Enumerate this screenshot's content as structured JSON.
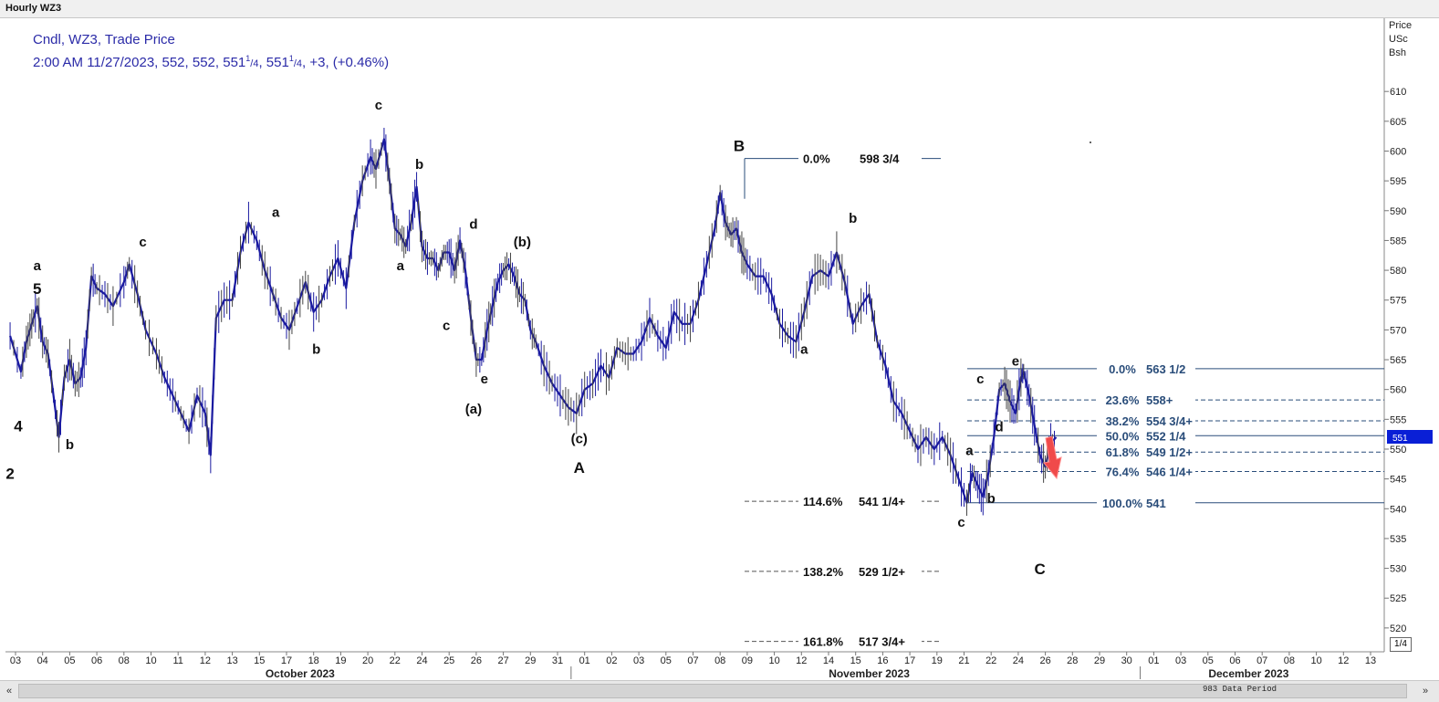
{
  "window": {
    "title": "Hourly WZ3"
  },
  "header": {
    "line1": "Cndl, WZ3, Trade Price",
    "line2_pre": "2:00 AM 11/27/2023, 552, 552, 551",
    "frac": "1",
    "frac_den": "/4",
    "line2_mid": ", 551",
    "line2_post": ", +3, (+0.46%)"
  },
  "axis": {
    "unit_lines": [
      "Price",
      "USc",
      "Bsh"
    ],
    "current_price_box": "551",
    "fraction_box": "1/4",
    "data_period": "983 Data Period"
  },
  "chart_data": {
    "type": "candlestick",
    "ylim": [
      516,
      615
    ],
    "y_ticks": [
      520,
      525,
      530,
      535,
      540,
      545,
      550,
      555,
      560,
      565,
      570,
      575,
      580,
      585,
      590,
      595,
      600,
      605,
      610
    ],
    "x_ticks": [
      {
        "label": "03",
        "i": 0
      },
      {
        "label": "04",
        "i": 1
      },
      {
        "label": "05",
        "i": 2
      },
      {
        "label": "06",
        "i": 3
      },
      {
        "label": "08",
        "i": 4
      },
      {
        "label": "10",
        "i": 5
      },
      {
        "label": "11",
        "i": 6
      },
      {
        "label": "12",
        "i": 7
      },
      {
        "label": "13",
        "i": 8
      },
      {
        "label": "15",
        "i": 9
      },
      {
        "label": "17",
        "i": 10
      },
      {
        "label": "18",
        "i": 11
      },
      {
        "label": "19",
        "i": 12
      },
      {
        "label": "20",
        "i": 13
      },
      {
        "label": "22",
        "i": 14
      },
      {
        "label": "24",
        "i": 15
      },
      {
        "label": "25",
        "i": 16
      },
      {
        "label": "26",
        "i": 17
      },
      {
        "label": "27",
        "i": 18
      },
      {
        "label": "29",
        "i": 19
      },
      {
        "label": "31",
        "i": 20
      },
      {
        "label": "01",
        "i": 21
      },
      {
        "label": "02",
        "i": 22
      },
      {
        "label": "03",
        "i": 23
      },
      {
        "label": "05",
        "i": 24
      },
      {
        "label": "07",
        "i": 25
      },
      {
        "label": "08",
        "i": 26
      },
      {
        "label": "09",
        "i": 27
      },
      {
        "label": "10",
        "i": 28
      },
      {
        "label": "12",
        "i": 29
      },
      {
        "label": "14",
        "i": 30
      },
      {
        "label": "15",
        "i": 31
      },
      {
        "label": "16",
        "i": 32
      },
      {
        "label": "17",
        "i": 33
      },
      {
        "label": "19",
        "i": 34
      },
      {
        "label": "21",
        "i": 35
      },
      {
        "label": "22",
        "i": 36
      },
      {
        "label": "24",
        "i": 37
      },
      {
        "label": "26",
        "i": 38
      },
      {
        "label": "28",
        "i": 39
      },
      {
        "label": "29",
        "i": 40
      },
      {
        "label": "30",
        "i": 41
      },
      {
        "label": "01",
        "i": 42
      },
      {
        "label": "03",
        "i": 43
      },
      {
        "label": "05",
        "i": 44
      },
      {
        "label": "06",
        "i": 45
      },
      {
        "label": "07",
        "i": 46
      },
      {
        "label": "08",
        "i": 47
      },
      {
        "label": "10",
        "i": 48
      },
      {
        "label": "12",
        "i": 49
      },
      {
        "label": "13",
        "i": 50
      }
    ],
    "months": [
      {
        "label": "October 2023",
        "i": 10.5
      },
      {
        "label": "November 2023",
        "i": 31.5
      },
      {
        "label": "December 2023",
        "i": 45.5
      }
    ],
    "month_separators": [
      20.5,
      41.5
    ],
    "price_path": [
      [
        -0.2,
        569
      ],
      [
        0.2,
        563
      ],
      [
        0.4,
        568
      ],
      [
        0.6,
        571
      ],
      [
        0.8,
        574
      ],
      [
        1.0,
        568
      ],
      [
        1.2,
        566
      ],
      [
        1.4,
        559
      ],
      [
        1.6,
        552
      ],
      [
        1.8,
        562
      ],
      [
        2.0,
        565
      ],
      [
        2.2,
        561
      ],
      [
        2.4,
        562
      ],
      [
        2.6,
        567
      ],
      [
        2.8,
        579
      ],
      [
        3.0,
        577
      ],
      [
        3.3,
        576
      ],
      [
        3.6,
        574
      ],
      [
        4.0,
        578
      ],
      [
        4.2,
        581
      ],
      [
        4.5,
        576
      ],
      [
        4.8,
        570
      ],
      [
        5.2,
        566
      ],
      [
        5.5,
        562
      ],
      [
        5.8,
        559
      ],
      [
        6.1,
        556
      ],
      [
        6.4,
        553
      ],
      [
        6.7,
        559
      ],
      [
        7.0,
        556
      ],
      [
        7.2,
        549
      ],
      [
        7.4,
        572
      ],
      [
        7.7,
        575
      ],
      [
        8.0,
        575
      ],
      [
        8.3,
        583
      ],
      [
        8.6,
        588
      ],
      [
        8.9,
        585
      ],
      [
        9.2,
        580
      ],
      [
        9.5,
        576
      ],
      [
        9.8,
        572
      ],
      [
        10.1,
        570
      ],
      [
        10.4,
        574
      ],
      [
        10.7,
        578
      ],
      [
        11.0,
        573
      ],
      [
        11.3,
        575
      ],
      [
        11.6,
        579
      ],
      [
        11.9,
        582
      ],
      [
        12.2,
        577
      ],
      [
        12.5,
        588
      ],
      [
        12.8,
        595
      ],
      [
        13.1,
        599
      ],
      [
        13.3,
        597
      ],
      [
        13.6,
        602
      ],
      [
        13.8,
        595
      ],
      [
        14.0,
        587
      ],
      [
        14.2,
        586
      ],
      [
        14.4,
        584
      ],
      [
        14.6,
        588
      ],
      [
        14.8,
        594
      ],
      [
        15.0,
        584
      ],
      [
        15.2,
        582
      ],
      [
        15.4,
        582
      ],
      [
        15.6,
        580
      ],
      [
        15.8,
        583
      ],
      [
        16.0,
        583
      ],
      [
        16.2,
        580
      ],
      [
        16.4,
        585
      ],
      [
        16.6,
        580
      ],
      [
        16.8,
        572
      ],
      [
        17.0,
        565
      ],
      [
        17.2,
        565
      ],
      [
        17.4,
        570
      ],
      [
        17.6,
        574
      ],
      [
        17.8,
        578
      ],
      [
        18.0,
        580
      ],
      [
        18.2,
        581
      ],
      [
        18.4,
        579
      ],
      [
        18.6,
        576
      ],
      [
        18.8,
        575
      ],
      [
        19.0,
        570
      ],
      [
        19.2,
        568
      ],
      [
        19.5,
        564
      ],
      [
        19.8,
        561
      ],
      [
        20.1,
        559
      ],
      [
        20.4,
        557
      ],
      [
        20.7,
        556
      ],
      [
        21.0,
        560
      ],
      [
        21.3,
        561
      ],
      [
        21.6,
        564
      ],
      [
        21.9,
        562
      ],
      [
        22.2,
        567
      ],
      [
        22.5,
        566
      ],
      [
        22.8,
        566
      ],
      [
        23.1,
        568
      ],
      [
        23.4,
        572
      ],
      [
        23.7,
        569
      ],
      [
        24.0,
        567
      ],
      [
        24.3,
        573
      ],
      [
        24.6,
        571
      ],
      [
        24.9,
        571
      ],
      [
        25.2,
        575
      ],
      [
        25.5,
        581
      ],
      [
        25.8,
        587
      ],
      [
        26.0,
        593
      ],
      [
        26.2,
        588
      ],
      [
        26.4,
        586
      ],
      [
        26.6,
        587
      ],
      [
        26.8,
        583
      ],
      [
        27.0,
        581
      ],
      [
        27.3,
        579
      ],
      [
        27.6,
        579
      ],
      [
        27.9,
        576
      ],
      [
        28.2,
        571
      ],
      [
        28.5,
        569
      ],
      [
        28.8,
        568
      ],
      [
        29.1,
        573
      ],
      [
        29.4,
        579
      ],
      [
        29.7,
        580
      ],
      [
        30.0,
        579
      ],
      [
        30.3,
        583
      ],
      [
        30.6,
        578
      ],
      [
        30.9,
        571
      ],
      [
        31.2,
        574
      ],
      [
        31.5,
        576
      ],
      [
        31.8,
        568
      ],
      [
        32.1,
        564
      ],
      [
        32.4,
        558
      ],
      [
        32.7,
        556
      ],
      [
        33.0,
        553
      ],
      [
        33.3,
        550
      ],
      [
        33.6,
        552
      ],
      [
        33.9,
        550
      ],
      [
        34.2,
        552
      ],
      [
        34.5,
        549
      ],
      [
        34.8,
        545
      ],
      [
        35.1,
        541
      ],
      [
        35.3,
        546
      ],
      [
        35.5,
        544
      ],
      [
        35.7,
        542
      ],
      [
        35.9,
        546
      ],
      [
        36.1,
        552
      ],
      [
        36.3,
        560
      ],
      [
        36.5,
        561
      ],
      [
        36.7,
        558
      ],
      [
        36.9,
        556
      ],
      [
        37.1,
        562
      ],
      [
        37.2,
        563
      ],
      [
        37.4,
        559
      ],
      [
        37.6,
        554
      ],
      [
        37.8,
        549
      ],
      [
        38.0,
        547
      ],
      [
        38.2,
        551
      ],
      [
        38.4,
        552
      ]
    ],
    "wave_labels": [
      {
        "text": "a",
        "i": 0.8,
        "y": 580,
        "big": false
      },
      {
        "text": "5",
        "i": 0.8,
        "y": 576,
        "big": true
      },
      {
        "text": "4",
        "i": 0.1,
        "y": 553,
        "big": true
      },
      {
        "text": "b",
        "i": 2.0,
        "y": 550,
        "big": false
      },
      {
        "text": "2",
        "i": -0.2,
        "y": 545,
        "big": true
      },
      {
        "text": "c",
        "i": 4.7,
        "y": 584,
        "big": false
      },
      {
        "text": "a",
        "i": 9.6,
        "y": 589,
        "big": false
      },
      {
        "text": "b",
        "i": 11.1,
        "y": 566,
        "big": false
      },
      {
        "text": "c",
        "i": 13.4,
        "y": 607,
        "big": false
      },
      {
        "text": "b",
        "i": 14.9,
        "y": 597,
        "big": false
      },
      {
        "text": "a",
        "i": 14.2,
        "y": 580,
        "big": false
      },
      {
        "text": "d",
        "i": 16.9,
        "y": 587,
        "big": false
      },
      {
        "text": "c",
        "i": 15.9,
        "y": 570,
        "big": false
      },
      {
        "text": "e",
        "i": 17.3,
        "y": 561,
        "big": false
      },
      {
        "text": "(a)",
        "i": 16.9,
        "y": 556,
        "big": false
      },
      {
        "text": "(b)",
        "i": 18.7,
        "y": 584,
        "big": false
      },
      {
        "text": "(c)",
        "i": 20.8,
        "y": 551,
        "big": false
      },
      {
        "text": "A",
        "i": 20.8,
        "y": 546,
        "big": true
      },
      {
        "text": "B",
        "i": 26.7,
        "y": 600,
        "big": true
      },
      {
        "text": "b",
        "i": 30.9,
        "y": 588,
        "big": false
      },
      {
        "text": "a",
        "i": 29.1,
        "y": 566,
        "big": false
      },
      {
        "text": "a",
        "i": 35.2,
        "y": 549,
        "big": false
      },
      {
        "text": "b",
        "i": 36.0,
        "y": 541,
        "big": false
      },
      {
        "text": "c",
        "i": 34.9,
        "y": 537,
        "big": false
      },
      {
        "text": "c",
        "i": 35.6,
        "y": 561,
        "big": false
      },
      {
        "text": "d",
        "i": 36.3,
        "y": 553,
        "big": false
      },
      {
        "text": "e",
        "i": 36.9,
        "y": 564,
        "big": false
      },
      {
        "text": "C",
        "i": 37.8,
        "y": 529,
        "big": true
      }
    ],
    "fib_upper": [
      {
        "label": "0.0%",
        "value_label": "563 1/2",
        "y": 563.5,
        "style": "solid"
      },
      {
        "label": "23.6%",
        "value_label": "558+",
        "y": 558.25,
        "style": "dash"
      },
      {
        "label": "38.2%",
        "value_label": "554 3/4+",
        "y": 554.75,
        "style": "dash"
      },
      {
        "label": "50.0%",
        "value_label": "552 1/4",
        "y": 552.25,
        "style": "solid"
      },
      {
        "label": "61.8%",
        "value_label": "549 1/2+",
        "y": 549.5,
        "style": "dash"
      },
      {
        "label": "76.4%",
        "value_label": "546 1/4+",
        "y": 546.25,
        "style": "dash"
      },
      {
        "label": "100.0%",
        "value_label": "541",
        "y": 541,
        "style": "solid"
      }
    ],
    "fib_ext": [
      {
        "label": "0.0%",
        "value_label": "598 3/4",
        "y": 598.75,
        "style": "solid"
      },
      {
        "label": "114.6%",
        "value_label": "541 1/4+",
        "y": 541.25,
        "style": "dash"
      },
      {
        "label": "138.2%",
        "value_label": "529 1/2+",
        "y": 529.5,
        "style": "dash"
      },
      {
        "label": "161.8%",
        "value_label": "517 3/4+",
        "y": 517.75,
        "style": "dash"
      }
    ]
  }
}
